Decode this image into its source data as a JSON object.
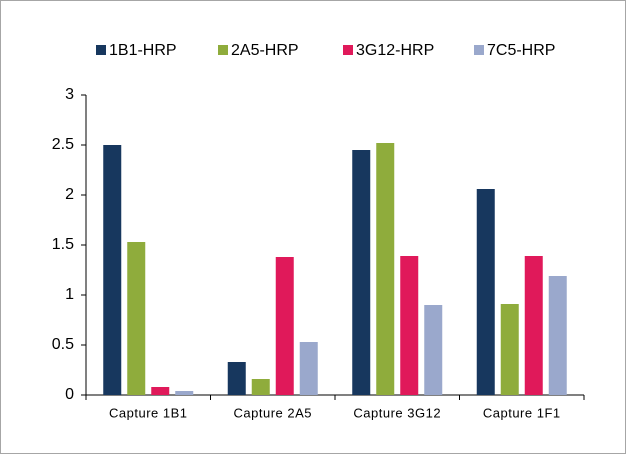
{
  "chart_data": {
    "type": "bar",
    "categories": [
      "Capture 1B1",
      "Capture 2A5",
      "Capture 3G12",
      "Capture 1F1"
    ],
    "series": [
      {
        "name": "1B1-HRP",
        "color": "#17375e",
        "values": [
          2.5,
          0.33,
          2.45,
          2.06
        ]
      },
      {
        "name": "2A5-HRP",
        "color": "#8fac3c",
        "values": [
          1.53,
          0.16,
          2.52,
          0.91
        ]
      },
      {
        "name": "3G12-HRP",
        "color": "#e0195a",
        "values": [
          0.08,
          1.38,
          1.39,
          1.39
        ]
      },
      {
        "name": "7C5-HRP",
        "color": "#9aa8cc",
        "values": [
          0.04,
          0.53,
          0.9,
          1.19
        ]
      }
    ],
    "ylim": [
      0,
      3
    ],
    "yticks": [
      0,
      0.5,
      1,
      1.5,
      2,
      2.5,
      3
    ],
    "grid": false,
    "legend": "top"
  }
}
